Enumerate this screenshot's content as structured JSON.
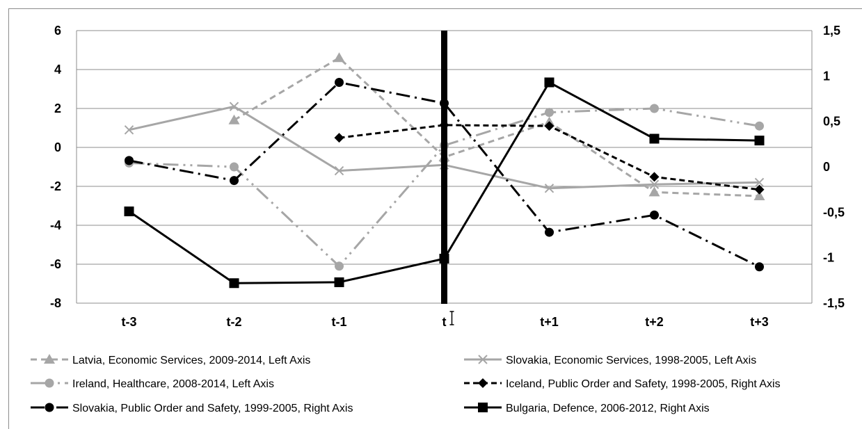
{
  "chart_data": {
    "type": "line",
    "categories": [
      "t-3",
      "t-2",
      "t-1",
      "t",
      "t+1",
      "t+2",
      "t+3"
    ],
    "left_axis": {
      "ylim": [
        -8,
        6
      ],
      "ticks": [
        6,
        4,
        2,
        0,
        -2,
        -4,
        -6,
        -8
      ],
      "tick_labels": [
        "6",
        "4",
        "2",
        "0",
        "-2",
        "-4",
        "-6",
        "-8"
      ]
    },
    "right_axis": {
      "ylim": [
        -1.5,
        1.5
      ],
      "ticks": [
        1.5,
        1,
        0.5,
        0,
        -0.5,
        -1,
        -1.5
      ],
      "tick_labels": [
        "1,5",
        "1",
        "0,5",
        "0",
        "-0,5",
        "-1",
        "-1,5"
      ]
    },
    "grid": true,
    "vertical_marker_at": "t",
    "legend_position": "bottom",
    "series": [
      {
        "name": "Latvia, Economic Services, 2009-2014, Left Axis",
        "axis": "left",
        "values": [
          null,
          1.4,
          4.6,
          -0.5,
          1.3,
          -2.3,
          -2.5
        ],
        "color": "#a6a6a6",
        "dash": "9,6",
        "marker": "triangle"
      },
      {
        "name": "Slovakia, Economic Services, 1998-2005, Left Axis",
        "axis": "left",
        "values": [
          0.9,
          2.1,
          -1.2,
          -0.9,
          -2.1,
          -1.9,
          -1.8
        ],
        "color": "#a6a6a6",
        "dash": "",
        "marker": "x"
      },
      {
        "name": "Ireland, Healthcare, 2008-2014, Left Axis",
        "axis": "left",
        "values": [
          -0.8,
          -1.0,
          -6.1,
          0.1,
          1.8,
          2.0,
          1.1
        ],
        "color": "#a6a6a6",
        "dash": "22,7,3,7,3,7",
        "marker": "circle"
      },
      {
        "name": "Iceland, Public Order and Safety, 1998-2005, Right Axis",
        "axis": "right",
        "values": [
          null,
          null,
          0.32,
          0.46,
          0.45,
          -0.11,
          -0.25
        ],
        "color": "#000000",
        "dash": "8,5",
        "marker": "diamond"
      },
      {
        "name": "Slovakia, Public Order and Safety, 1999-2005, Right Axis",
        "axis": "right",
        "values": [
          0.07,
          -0.15,
          0.93,
          0.7,
          -0.72,
          -0.53,
          -1.1
        ],
        "color": "#000000",
        "dash": "20,7,3,7",
        "marker": "circle"
      },
      {
        "name": "Bulgaria, Defence, 2006-2012, Right Axis",
        "axis": "right",
        "values": [
          -0.49,
          -1.28,
          -1.27,
          -1.01,
          0.93,
          0.31,
          0.29
        ],
        "color": "#000000",
        "dash": "",
        "marker": "square"
      }
    ]
  }
}
